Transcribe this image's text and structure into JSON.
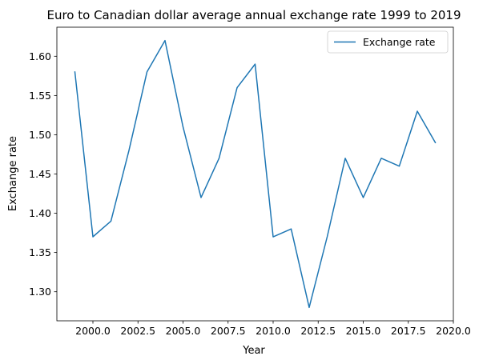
{
  "chart_data": {
    "type": "line",
    "title": "Euro to Canadian dollar average annual exchange rate 1999 to 2019",
    "xlabel": "Year",
    "ylabel": "Exchange rate",
    "xlim": [
      1998.0,
      2020.0
    ],
    "ylim": [
      1.263,
      1.637
    ],
    "xticks": [
      2000.0,
      2002.5,
      2005.0,
      2007.5,
      2010.0,
      2012.5,
      2015.0,
      2017.5,
      2020.0
    ],
    "xtick_labels": [
      "2000.0",
      "2002.5",
      "2005.0",
      "2007.5",
      "2010.0",
      "2012.5",
      "2015.0",
      "2017.5",
      "2020.0"
    ],
    "yticks": [
      1.3,
      1.35,
      1.4,
      1.45,
      1.5,
      1.55,
      1.6
    ],
    "ytick_labels": [
      "1.30",
      "1.35",
      "1.40",
      "1.45",
      "1.50",
      "1.55",
      "1.60"
    ],
    "grid": false,
    "legend_position": "top-right",
    "series": [
      {
        "name": "Exchange rate",
        "color": "#1f77b4",
        "x": [
          1999,
          2000,
          2001,
          2002,
          2003,
          2004,
          2005,
          2006,
          2007,
          2008,
          2009,
          2010,
          2011,
          2012,
          2013,
          2014,
          2015,
          2016,
          2017,
          2018,
          2019
        ],
        "y": [
          1.58,
          1.37,
          1.39,
          1.48,
          1.58,
          1.62,
          1.51,
          1.42,
          1.47,
          1.56,
          1.59,
          1.37,
          1.38,
          1.28,
          1.37,
          1.47,
          1.42,
          1.47,
          1.46,
          1.53,
          1.49
        ]
      }
    ]
  }
}
